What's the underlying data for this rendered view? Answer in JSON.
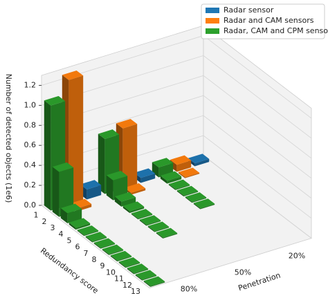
{
  "chart_data": {
    "type": "bar3d",
    "zlabel": "Number of detected objects (1e6)",
    "xlabel": "Redundancy score",
    "ylabel": "Penetration",
    "categories": [
      "1",
      "2",
      "3",
      "4",
      "5",
      "6",
      "7",
      "8",
      "9",
      "10",
      "11",
      "12",
      "13"
    ],
    "penetration": [
      "80%",
      "50%",
      "20%"
    ],
    "zlim": [
      0,
      1.3
    ],
    "zticks": [
      {
        "value": 0,
        "label": "0.0"
      },
      0.2,
      0.4,
      0.6,
      0.8,
      {
        "value": 1,
        "label": "1.0"
      },
      1.2
    ],
    "grid": true,
    "legend": "upper right",
    "series": [
      {
        "name": "Radar sensor",
        "color": "#1f77b4",
        "values": [
          [
            0.1,
            null,
            null,
            null,
            null,
            null,
            null,
            null,
            null,
            null,
            null,
            null,
            null
          ],
          [
            0.05,
            null,
            null,
            null,
            null,
            null,
            null,
            null,
            null,
            null,
            null,
            null,
            null
          ],
          [
            0.03,
            null,
            null,
            null,
            null,
            null,
            null,
            null,
            null,
            null,
            null,
            null,
            null
          ]
        ]
      },
      {
        "name": "Radar and CAM sensors",
        "color": "#ff7f0e",
        "values": [
          [
            1.25,
            0.03,
            null,
            null,
            null,
            null,
            null,
            null,
            null,
            null,
            null,
            null,
            null
          ],
          [
            0.6,
            0.02,
            null,
            null,
            null,
            null,
            null,
            null,
            null,
            null,
            null,
            null,
            null
          ],
          [
            0.07,
            0.01,
            null,
            null,
            null,
            null,
            null,
            null,
            null,
            null,
            null,
            null,
            null
          ]
        ]
      },
      {
        "name": "Radar, CAM and CPM sensors",
        "color": "#2ca02c",
        "values": [
          [
            1.05,
            0.45,
            0.1,
            0.02,
            0.01,
            0.01,
            0.01,
            0.01,
            0.01,
            0.01,
            0.01,
            0.01,
            0.01
          ],
          [
            0.55,
            0.2,
            0.05,
            0.02,
            0.01,
            0.01,
            0.01,
            0.01,
            null,
            null,
            null,
            null,
            null
          ],
          [
            0.1,
            0.03,
            0.01,
            0.01,
            0.01,
            0.01,
            null,
            null,
            null,
            null,
            null,
            null,
            null
          ]
        ]
      }
    ]
  }
}
